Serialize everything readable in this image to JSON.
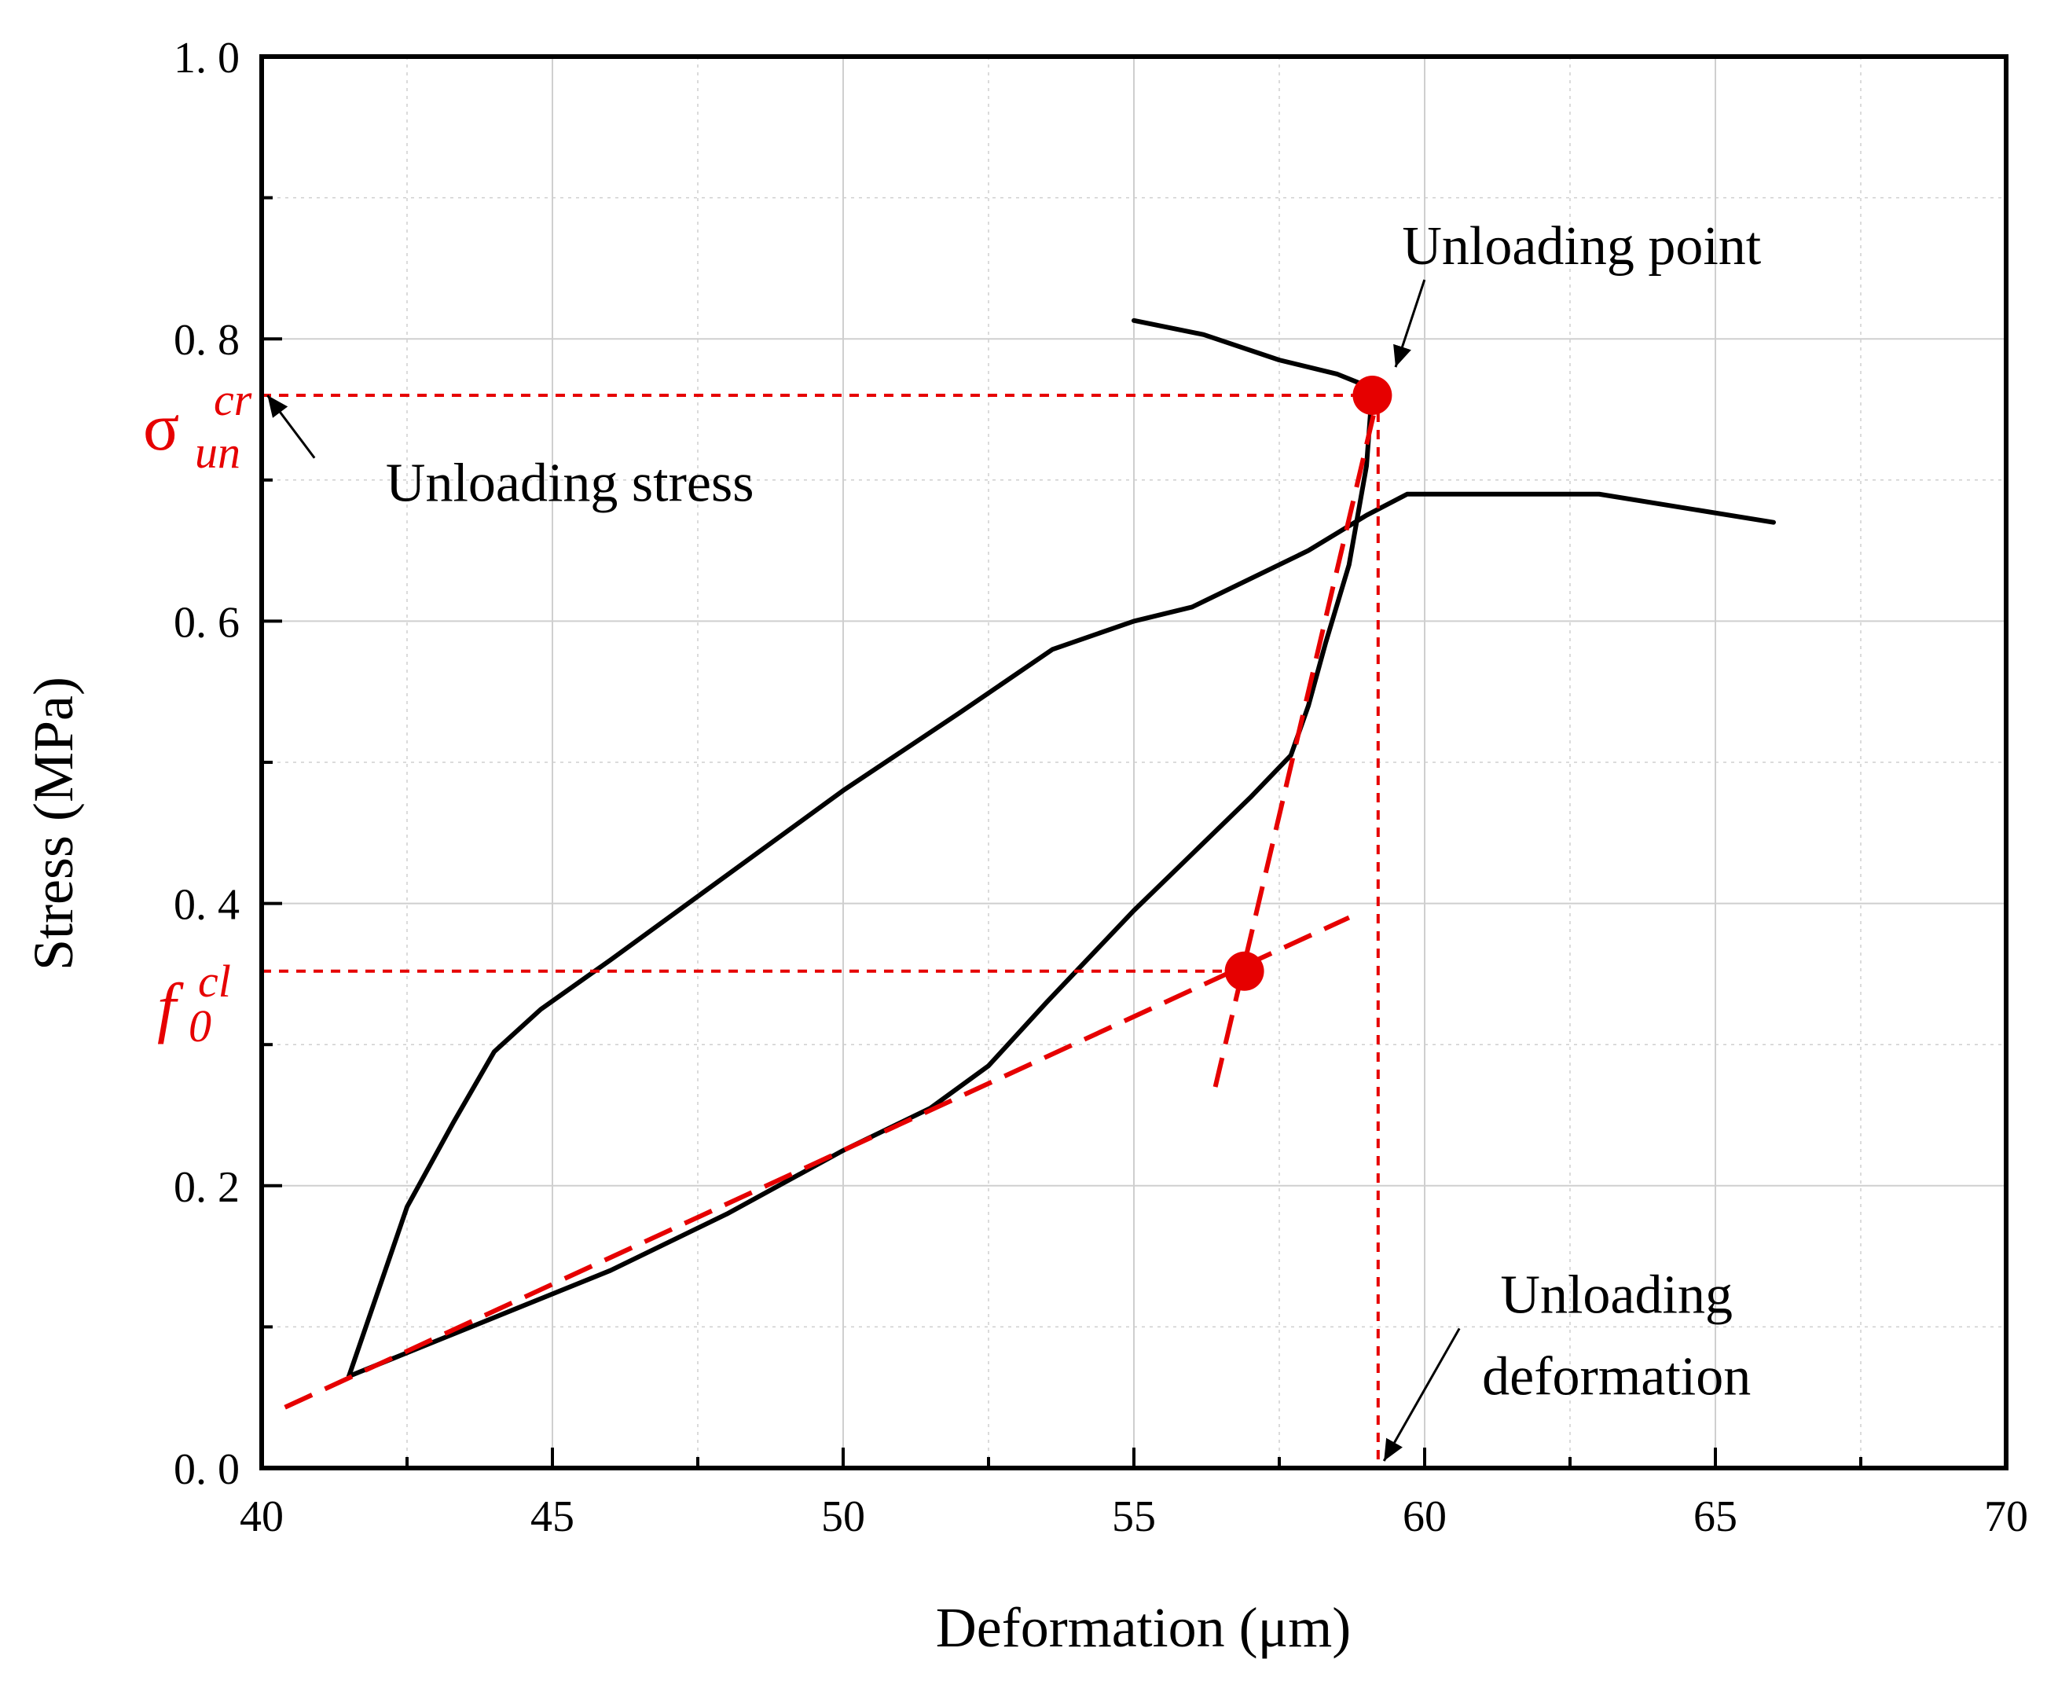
{
  "chart_data": {
    "type": "line",
    "xlabel": "Deformation (μm)",
    "ylabel": "Stress (MPa)",
    "xlim": [
      40,
      70
    ],
    "ylim": [
      0.0,
      1.0
    ],
    "x_ticks": [
      40,
      45,
      50,
      55,
      60,
      65,
      70
    ],
    "x_tick_labels": [
      "40",
      "45",
      "50",
      "55",
      "60",
      "65",
      "70"
    ],
    "y_ticks": [
      0.0,
      0.2,
      0.4,
      0.6,
      0.8,
      1.0
    ],
    "y_tick_labels": [
      "0. 0",
      "0. 2",
      "0. 4",
      "0. 6",
      "0. 8",
      "1. 0"
    ],
    "grid": true,
    "colors": {
      "curve": "#000000",
      "construction": "#e60000",
      "grid": "#cfcfcf"
    },
    "series": [
      {
        "name": "loading-curve",
        "x": [
          41.5,
          42.5,
          43.3,
          44.0,
          44.8,
          46.0,
          48.0,
          50.0,
          52.0,
          53.6,
          55.0,
          56.0,
          58.0,
          59.0,
          59.7,
          61.0,
          63.0,
          66.0
        ],
        "y": [
          0.065,
          0.185,
          0.245,
          0.295,
          0.325,
          0.36,
          0.42,
          0.48,
          0.535,
          0.58,
          0.6,
          0.61,
          0.65,
          0.675,
          0.69,
          0.69,
          0.69,
          0.67
        ]
      },
      {
        "name": "unloading-reloading-curve",
        "x": [
          41.5,
          43.0,
          44.5,
          46.0,
          48.0,
          50.0,
          51.5,
          52.5,
          53.5,
          55.0,
          56.0,
          57.0,
          57.7,
          58.0,
          58.3,
          58.7,
          59.0,
          59.1
        ],
        "y": [
          0.065,
          0.09,
          0.115,
          0.14,
          0.18,
          0.225,
          0.255,
          0.285,
          0.33,
          0.395,
          0.435,
          0.475,
          0.505,
          0.54,
          0.585,
          0.64,
          0.71,
          0.765
        ]
      },
      {
        "name": "post-peak-curve",
        "x": [
          55.0,
          56.2,
          57.5,
          58.5,
          59.1
        ],
        "y": [
          0.813,
          0.803,
          0.785,
          0.775,
          0.765
        ]
      }
    ],
    "construction_lines": [
      {
        "name": "initial-tangent",
        "style": "dashed",
        "x": [
          40.4,
          58.7
        ],
        "y": [
          0.043,
          0.39
        ]
      },
      {
        "name": "unloading-tangent",
        "style": "dashed",
        "x": [
          56.4,
          59.2
        ],
        "y": [
          0.27,
          0.76
        ]
      },
      {
        "name": "unloading-stress-level",
        "style": "dotted",
        "x": [
          40.0,
          59.1
        ],
        "y": [
          0.76,
          0.76
        ]
      },
      {
        "name": "unloading-deformation-level",
        "style": "dotted",
        "x": [
          59.2,
          59.2
        ],
        "y": [
          0.76,
          0.0
        ]
      },
      {
        "name": "crack-stress-level",
        "style": "dotted",
        "x": [
          40.0,
          56.9
        ],
        "y": [
          0.352,
          0.352
        ]
      }
    ],
    "points": [
      {
        "name": "unloading-point",
        "x": 59.1,
        "y": 0.76
      },
      {
        "name": "crack-point",
        "x": 56.9,
        "y": 0.352
      }
    ],
    "annotations": [
      {
        "name": "unloading-point-label",
        "text": "Unloading point",
        "x": 62.7,
        "y": 0.853,
        "arrow_to": [
          59.5,
          0.78
        ]
      },
      {
        "name": "unloading-stress-label",
        "text": "Unloading stress",
        "x": 45.3,
        "y": 0.685,
        "arrow_to": [
          40.1,
          0.76
        ]
      },
      {
        "name": "unloading-deformation-label-1",
        "text": "Unloading",
        "x": 63.3,
        "y": 0.11,
        "arrow_to": [
          59.3,
          0.005
        ]
      },
      {
        "name": "unloading-deformation-label-2",
        "text": "deformation",
        "x": 63.3,
        "y": 0.052
      }
    ],
    "symbols": {
      "sigma": {
        "base": "σ",
        "sup": "cr",
        "sub": "un"
      },
      "f": {
        "base": "f",
        "sup": "cl",
        "sub": "0"
      }
    }
  }
}
